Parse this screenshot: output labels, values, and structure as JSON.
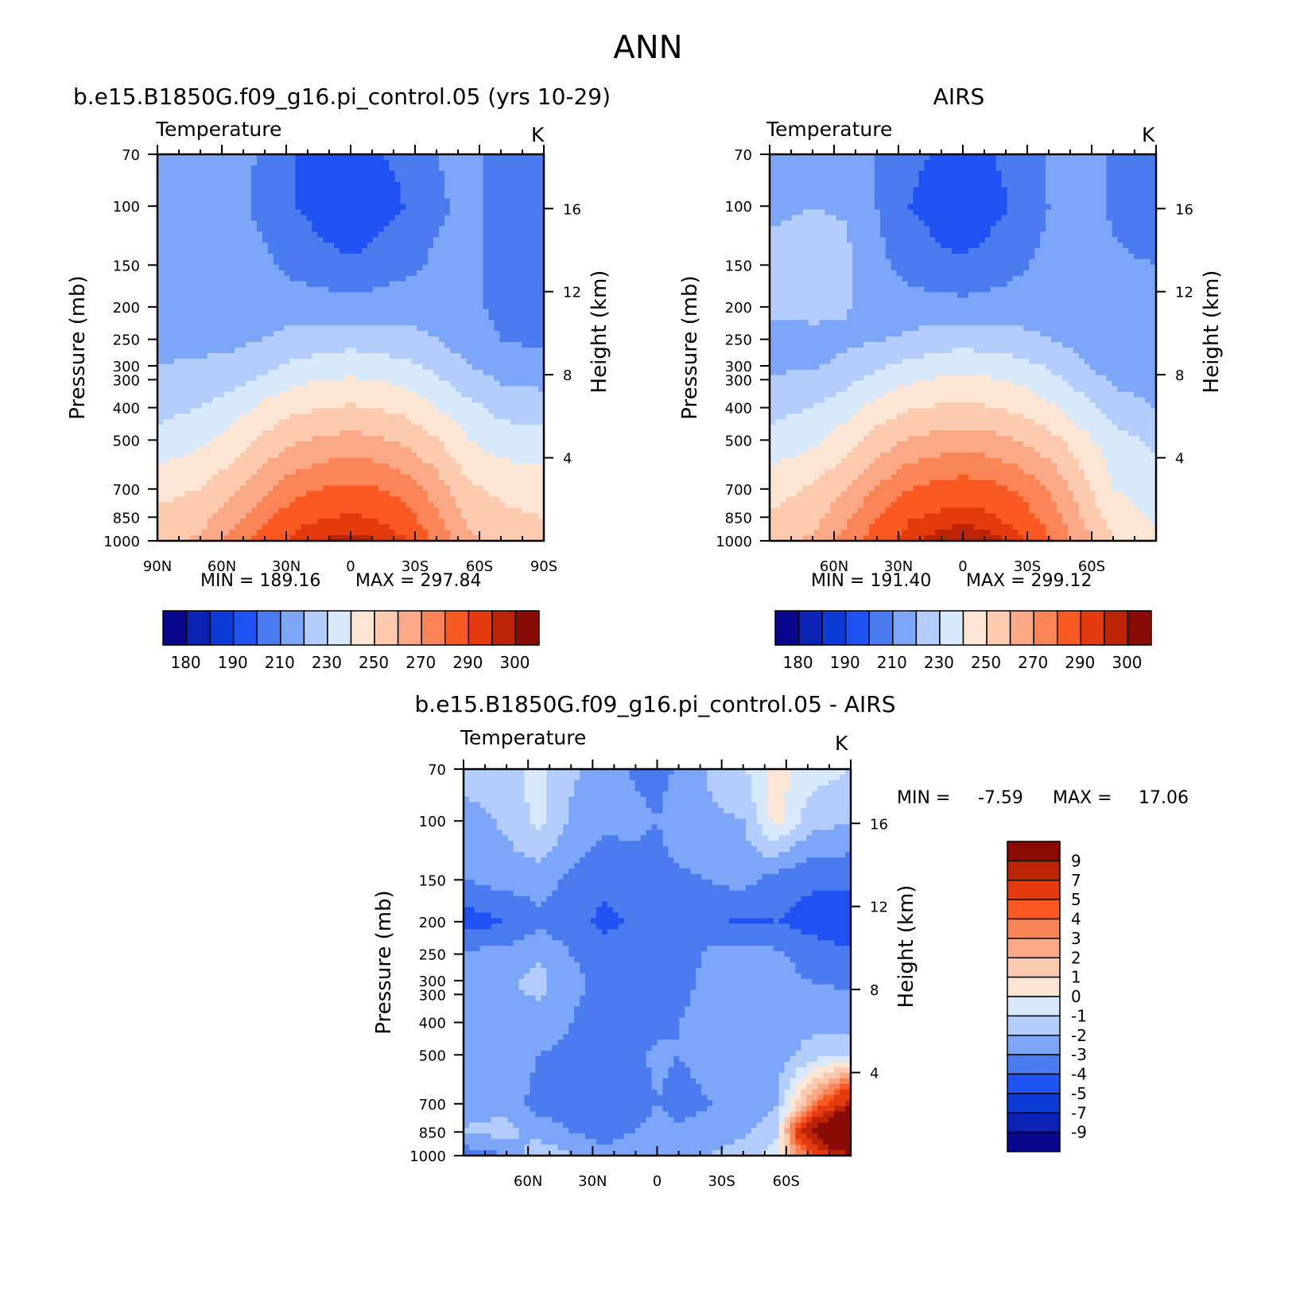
{
  "figure": {
    "title": "ANN"
  },
  "palettes": {
    "absolute": [
      "#08088f",
      "#0a22b4",
      "#0b3ad6",
      "#1f52f2",
      "#4a7cf0",
      "#7ea6f8",
      "#b3cdfc",
      "#d8e9fc",
      "#fde5d3",
      "#fccaae",
      "#fba886",
      "#f98556",
      "#fa5a22",
      "#e53a0d",
      "#bb2506",
      "#8a0a05"
    ],
    "difference": [
      "#08088f",
      "#0a22b4",
      "#0b3ad6",
      "#1f52f2",
      "#4a7cf0",
      "#7ea6f8",
      "#b3cdfc",
      "#d8e9fc",
      "#fde5d3",
      "#fccaae",
      "#fba886",
      "#f98556",
      "#fa5a22",
      "#e53a0d",
      "#bb2506",
      "#8a0a05"
    ]
  },
  "chart_data": [
    {
      "type": "heatmap",
      "title": "b.e15.B1850G.f09_g16.pi_control.05 (yrs 10-29)",
      "subtitle": "Temperature",
      "units": "K",
      "ylabel": "Pressure (mb)",
      "y2label": "Height (km)",
      "x_ticks": [
        "90N",
        "60N",
        "30N",
        "0",
        "30S",
        "60S",
        "90S"
      ],
      "y_ticks": [
        "70",
        "100",
        "150",
        "200",
        "250",
        "300",
        "300",
        "400",
        "500",
        "700",
        "850",
        "1000"
      ],
      "y2_ticks": [
        "16",
        "12",
        "8",
        "4"
      ],
      "min_label": "MIN = 189.16",
      "max_label": "MAX = 297.84",
      "min": 189.16,
      "max": 297.84,
      "colorbar_labels": [
        "180",
        "190",
        "210",
        "230",
        "250",
        "270",
        "290",
        "300"
      ],
      "field": {
        "lat": [
          90,
          70,
          55,
          40,
          25,
          10,
          0,
          -10,
          -25,
          -40,
          -55,
          -70,
          -90
        ],
        "pressure": [
          70,
          100,
          150,
          200,
          250,
          300,
          400,
          500,
          700,
          850,
          1000
        ],
        "values": [
          [
            215,
            215,
            215,
            208,
            200,
            198,
            198,
            199,
            202,
            210,
            214,
            205,
            205
          ],
          [
            214,
            214,
            213,
            207,
            200,
            195,
            193,
            195,
            200,
            208,
            213,
            206,
            205
          ],
          [
            215,
            215,
            215,
            212,
            206,
            203,
            201,
            203,
            207,
            212,
            212,
            208,
            207
          ],
          [
            217,
            217,
            217,
            217,
            216,
            215,
            214,
            215,
            216,
            216,
            212,
            208,
            207
          ],
          [
            218,
            218,
            218,
            220,
            223,
            225,
            226,
            225,
            223,
            220,
            215,
            210,
            208
          ],
          [
            220,
            221,
            222,
            227,
            233,
            235,
            236,
            235,
            233,
            227,
            220,
            215,
            213
          ],
          [
            227,
            230,
            235,
            243,
            248,
            250,
            251,
            250,
            247,
            240,
            233,
            227,
            225
          ],
          [
            233,
            238,
            244,
            252,
            259,
            262,
            263,
            262,
            258,
            251,
            240,
            235,
            233
          ],
          [
            247,
            250,
            257,
            268,
            277,
            281,
            282,
            281,
            276,
            265,
            252,
            248,
            246
          ],
          [
            252,
            256,
            266,
            278,
            287,
            290,
            291,
            290,
            285,
            272,
            258,
            252,
            250
          ],
          [
            256,
            262,
            273,
            285,
            293,
            296,
            297,
            296,
            291,
            278,
            263,
            255,
            252
          ]
        ]
      }
    },
    {
      "type": "heatmap",
      "title": "AIRS",
      "subtitle": "Temperature",
      "units": "K",
      "ylabel": "Pressure (mb)",
      "y2label": "Height (km)",
      "x_ticks": [
        "60N",
        "30N",
        "0",
        "30S",
        "60S"
      ],
      "y_ticks": [
        "70",
        "100",
        "150",
        "200",
        "250",
        "300",
        "300",
        "400",
        "500",
        "700",
        "850",
        "1000"
      ],
      "y2_ticks": [
        "16",
        "12",
        "8",
        "4"
      ],
      "min_label": "MIN = 191.40",
      "max_label": "MAX = 299.12",
      "min": 191.4,
      "max": 299.12,
      "colorbar_labels": [
        "180",
        "190",
        "210",
        "230",
        "250",
        "270",
        "290",
        "300"
      ],
      "field": {
        "lat": [
          90,
          70,
          55,
          40,
          25,
          10,
          0,
          -10,
          -25,
          -40,
          -55,
          -70,
          -90
        ],
        "pressure": [
          70,
          100,
          150,
          200,
          250,
          300,
          400,
          500,
          700,
          850,
          1000
        ],
        "values": [
          [
            216,
            216,
            216,
            210,
            202,
            199,
            198,
            199,
            203,
            211,
            215,
            208,
            205
          ],
          [
            218,
            220,
            219,
            210,
            200,
            196,
            194,
            196,
            201,
            210,
            214,
            209,
            206
          ],
          [
            223,
            224,
            223,
            213,
            206,
            202,
            201,
            203,
            208,
            213,
            214,
            211,
            210
          ],
          [
            222,
            223,
            221,
            216,
            214,
            214,
            213,
            214,
            215,
            216,
            214,
            211,
            210
          ],
          [
            216,
            217,
            218,
            219,
            222,
            225,
            226,
            225,
            223,
            220,
            216,
            212,
            210
          ],
          [
            218,
            219,
            222,
            228,
            233,
            236,
            237,
            236,
            234,
            229,
            222,
            215,
            212
          ],
          [
            227,
            230,
            236,
            244,
            249,
            251,
            252,
            251,
            248,
            242,
            234,
            225,
            220
          ],
          [
            233,
            238,
            245,
            254,
            261,
            264,
            265,
            264,
            260,
            254,
            244,
            234,
            228
          ],
          [
            246,
            251,
            259,
            271,
            280,
            284,
            285,
            284,
            279,
            269,
            255,
            240,
            236
          ],
          [
            251,
            256,
            267,
            280,
            289,
            292,
            293,
            292,
            287,
            276,
            260,
            245,
            238
          ],
          [
            255,
            262,
            273,
            285,
            294,
            298,
            299,
            298,
            293,
            281,
            265,
            250,
            242
          ]
        ]
      }
    },
    {
      "type": "heatmap",
      "title": "b.e15.B1850G.f09_g16.pi_control.05 - AIRS",
      "subtitle": "Temperature",
      "units": "K",
      "ylabel": "Pressure (mb)",
      "y2label": "Height (km)",
      "x_ticks": [
        "60N",
        "30N",
        "0",
        "30S",
        "60S"
      ],
      "y_ticks": [
        "70",
        "100",
        "150",
        "200",
        "250",
        "300",
        "300",
        "400",
        "500",
        "700",
        "850",
        "1000"
      ],
      "y2_ticks": [
        "16",
        "12",
        "8",
        "4"
      ],
      "min_label": "MIN =",
      "min_value": "-7.59",
      "max_label": "MAX =",
      "max_value": "17.06",
      "min": -7.59,
      "max": 17.06,
      "colorbar_labels": [
        "9",
        "7",
        "5",
        "4",
        "3",
        "2",
        "1",
        "0",
        "-1",
        "-2",
        "-3",
        "-4",
        "-5",
        "-7",
        "-9"
      ],
      "field": {
        "lat": [
          90,
          70,
          55,
          40,
          25,
          10,
          0,
          -10,
          -25,
          -40,
          -55,
          -70,
          -90
        ],
        "pressure": [
          70,
          100,
          150,
          200,
          250,
          300,
          400,
          500,
          700,
          850,
          1000
        ],
        "values": [
          [
            -1.5,
            -1.2,
            -0.8,
            -1.8,
            -2.5,
            -3.2,
            -3.5,
            -2.8,
            -1.8,
            -1.2,
            0.6,
            -0.5,
            -1.0
          ],
          [
            -2.5,
            -1.8,
            -0.6,
            -2.2,
            -2.8,
            -2.6,
            -3.0,
            -2.2,
            -2.2,
            -2.0,
            0.4,
            -1.5,
            -2.0
          ],
          [
            -3.0,
            -2.6,
            -2.6,
            -3.2,
            -3.6,
            -3.8,
            -3.6,
            -3.2,
            -3.0,
            -2.6,
            -3.5,
            -3.8,
            -3.8
          ],
          [
            -4.6,
            -4.0,
            -3.2,
            -3.6,
            -4.3,
            -3.8,
            -3.6,
            -3.4,
            -3.8,
            -4.2,
            -4.0,
            -4.4,
            -4.8
          ],
          [
            -2.8,
            -2.6,
            -2.2,
            -3.0,
            -3.4,
            -3.6,
            -3.8,
            -3.6,
            -2.8,
            -2.4,
            -2.8,
            -3.4,
            -3.8
          ],
          [
            -2.4,
            -2.2,
            -1.6,
            -2.8,
            -3.2,
            -3.6,
            -3.8,
            -3.4,
            -2.6,
            -2.0,
            -2.6,
            -3.0,
            -3.2
          ],
          [
            -2.2,
            -2.4,
            -2.4,
            -3.0,
            -3.4,
            -3.6,
            -3.3,
            -3.0,
            -2.6,
            -2.0,
            -2.6,
            -2.4,
            -2.4
          ],
          [
            -2.0,
            -2.4,
            -3.0,
            -3.2,
            -3.6,
            -3.2,
            -2.8,
            -3.0,
            -2.6,
            -2.4,
            -2.6,
            -1.6,
            -1.0
          ],
          [
            -2.2,
            -2.4,
            -3.4,
            -3.6,
            -3.6,
            -3.4,
            -3.0,
            -3.4,
            -3.0,
            -2.6,
            -2.2,
            2.5,
            8.0
          ],
          [
            -2.0,
            -1.6,
            -2.4,
            -3.0,
            -3.4,
            -3.0,
            -2.6,
            -2.8,
            -2.6,
            -2.2,
            -1.4,
            8.5,
            17.0
          ],
          [
            -3.6,
            -3.0,
            -1.2,
            -2.0,
            -2.6,
            -2.4,
            -2.0,
            -2.4,
            -2.0,
            -1.4,
            -0.5,
            4.0,
            9.0
          ]
        ]
      }
    }
  ]
}
